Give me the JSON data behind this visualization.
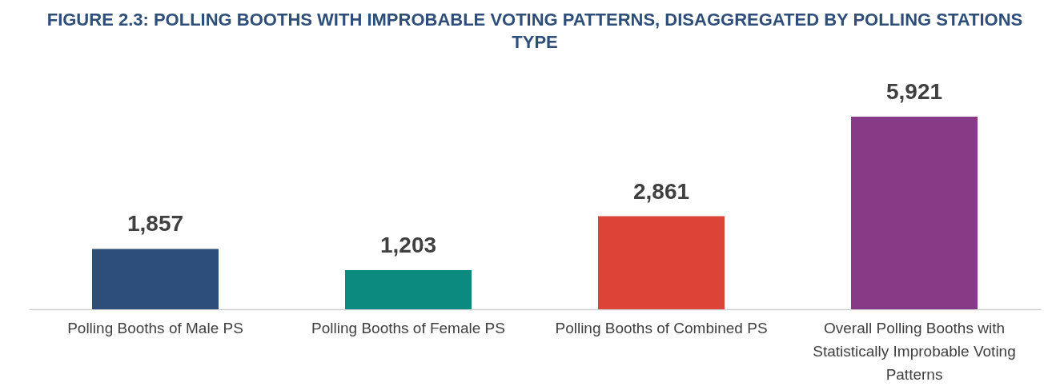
{
  "chart_data": {
    "type": "bar",
    "title": "FIGURE 2.3: POLLING BOOTHS WITH IMPROBABLE VOTING PATTERNS, DISAGGREGATED BY POLLING STATIONS TYPE",
    "categories": [
      "Polling Booths of Male PS",
      "Polling Booths of Female PS",
      "Polling Booths of Combined PS",
      "Overall Polling Booths with Statistically Improbable Voting Patterns"
    ],
    "values": [
      1857,
      1203,
      2861,
      5921
    ],
    "value_labels": [
      "1,857",
      "1,203",
      "2,861",
      "5,921"
    ],
    "colors": [
      "#2e4e7a",
      "#0b8a80",
      "#dc4437",
      "#873a86"
    ]
  }
}
